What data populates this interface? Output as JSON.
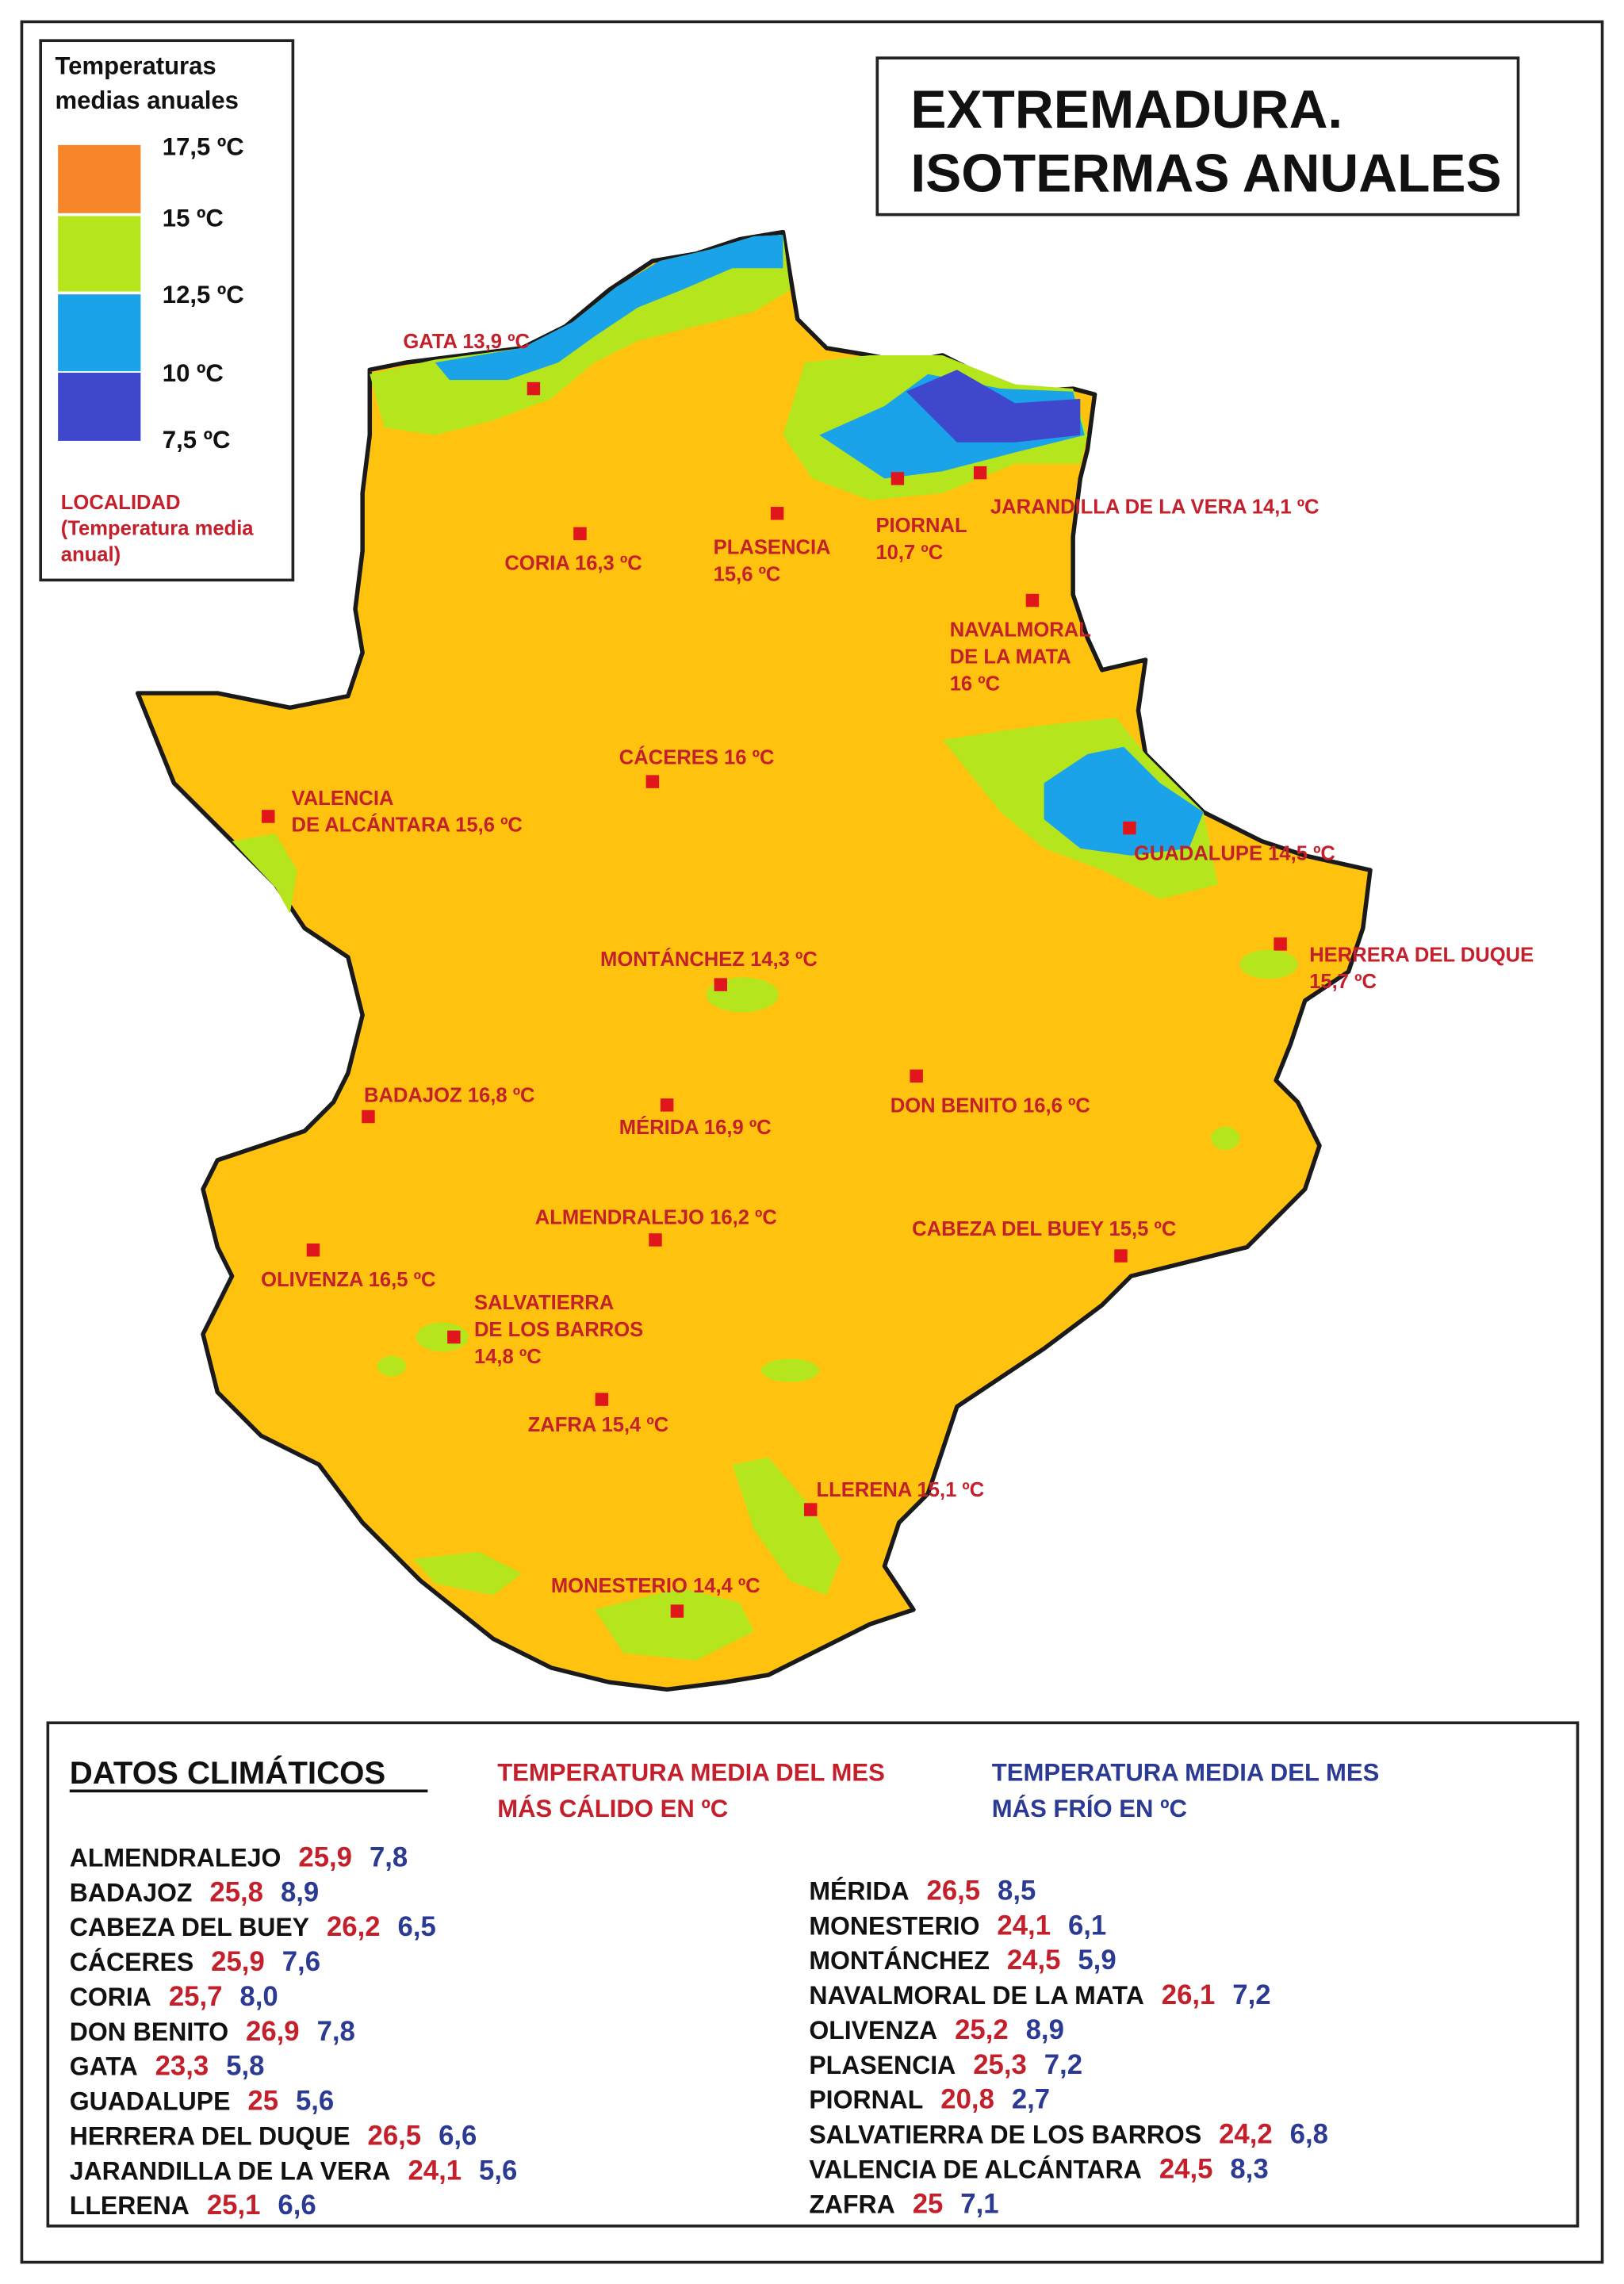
{
  "title_lines": [
    "EXTREMADURA.",
    "ISOTERMAS ANUALES"
  ],
  "legend": {
    "title_lines": [
      "Temperaturas",
      "medias anuales"
    ],
    "levels": [
      "17,5 ºC",
      "15 ºC",
      "12,5 ºC",
      "10 ºC",
      "7,5 ºC"
    ],
    "note_lines": [
      "LOCALIDAD",
      "(Temperatura media",
      "anual)"
    ]
  },
  "localities": [
    {
      "lines": [
        "GATA 13,9 ºC"
      ]
    },
    {
      "lines": [
        "CORIA 16,3 ºC"
      ]
    },
    {
      "lines": [
        "PLASENCIA",
        "15,6 ºC"
      ]
    },
    {
      "lines": [
        "PIORNAL",
        "10,7 ºC"
      ]
    },
    {
      "lines": [
        "JARANDILLA DE LA VERA 14,1 ºC"
      ]
    },
    {
      "lines": [
        "NAVALMORAL",
        "DE LA MATA",
        "16 ºC"
      ]
    },
    {
      "lines": [
        "CÁCERES 16 ºC"
      ]
    },
    {
      "lines": [
        "VALENCIA",
        "DE ALCÁNTARA 15,6 ºC"
      ]
    },
    {
      "lines": [
        "GUADALUPE 14,5 ºC"
      ]
    },
    {
      "lines": [
        "HERRERA DEL DUQUE",
        "15,7 ºC"
      ]
    },
    {
      "lines": [
        "MONTÁNCHEZ 14,3 ºC"
      ]
    },
    {
      "lines": [
        "BADAJOZ 16,8 ºC"
      ]
    },
    {
      "lines": [
        "MÉRIDA 16,9 ºC"
      ]
    },
    {
      "lines": [
        "DON BENITO 16,6 ºC"
      ]
    },
    {
      "lines": [
        "ALMENDRALEJO 16,2 ºC"
      ]
    },
    {
      "lines": [
        "CABEZA DEL BUEY 15,5 ºC"
      ]
    },
    {
      "lines": [
        "OLIVENZA 16,5 ºC"
      ]
    },
    {
      "lines": [
        "SALVATIERRA",
        "DE LOS BARROS",
        "14,8 ºC"
      ]
    },
    {
      "lines": [
        "ZAFRA 15,4 ºC"
      ]
    },
    {
      "lines": [
        "LLERENA 15,1 ºC"
      ]
    },
    {
      "lines": [
        "MONESTERIO 14,4 ºC"
      ]
    }
  ],
  "climate_data": {
    "title": "DATOS CLIMÁTICOS",
    "warm_header": [
      "TEMPERATURA MEDIA DEL MES",
      "MÁS CÁLIDO EN ºC"
    ],
    "cold_header": [
      "TEMPERATURA MEDIA DEL MES",
      "MÁS FRÍO EN ºC"
    ],
    "rows": [
      {
        "name": "ALMENDRALEJO",
        "warm": "25,9",
        "cold": "7,8"
      },
      {
        "name": "BADAJOZ",
        "warm": "25,8",
        "cold": "8,9"
      },
      {
        "name": "CABEZA DEL BUEY",
        "warm": "26,2",
        "cold": "6,5"
      },
      {
        "name": "CÁCERES",
        "warm": "25,9",
        "cold": "7,6"
      },
      {
        "name": "CORIA",
        "warm": "25,7",
        "cold": "8,0"
      },
      {
        "name": "DON BENITO",
        "warm": "26,9",
        "cold": "7,8"
      },
      {
        "name": "GATA",
        "warm": "23,3",
        "cold": "5,8"
      },
      {
        "name": "GUADALUPE",
        "warm": "25",
        "cold": "5,6"
      },
      {
        "name": "HERRERA DEL DUQUE",
        "warm": "26,5",
        "cold": "6,6"
      },
      {
        "name": "JARANDILLA DE LA VERA",
        "warm": "24,1",
        "cold": "5,6"
      },
      {
        "name": "LLERENA",
        "warm": "25,1",
        "cold": "6,6"
      },
      {
        "name": "MÉRIDA",
        "warm": "26,5",
        "cold": "8,5"
      },
      {
        "name": "MONESTERIO",
        "warm": "24,1",
        "cold": "6,1"
      },
      {
        "name": "MONTÁNCHEZ",
        "warm": "24,5",
        "cold": "5,9"
      },
      {
        "name": "NAVALMORAL DE LA MATA",
        "warm": "26,1",
        "cold": "7,2"
      },
      {
        "name": "OLIVENZA",
        "warm": "25,2",
        "cold": "8,9"
      },
      {
        "name": "PLASENCIA",
        "warm": "25,3",
        "cold": "7,2"
      },
      {
        "name": "PIORNAL",
        "warm": "20,8",
        "cold": "2,7"
      },
      {
        "name": "SALVATIERRA DE LOS BARROS",
        "warm": "24,2",
        "cold": "6,8"
      },
      {
        "name": "VALENCIA DE ALCÁNTARA",
        "warm": "24,5",
        "cold": "8,3"
      },
      {
        "name": "ZAFRA",
        "warm": "25",
        "cold": "7,1"
      }
    ]
  }
}
